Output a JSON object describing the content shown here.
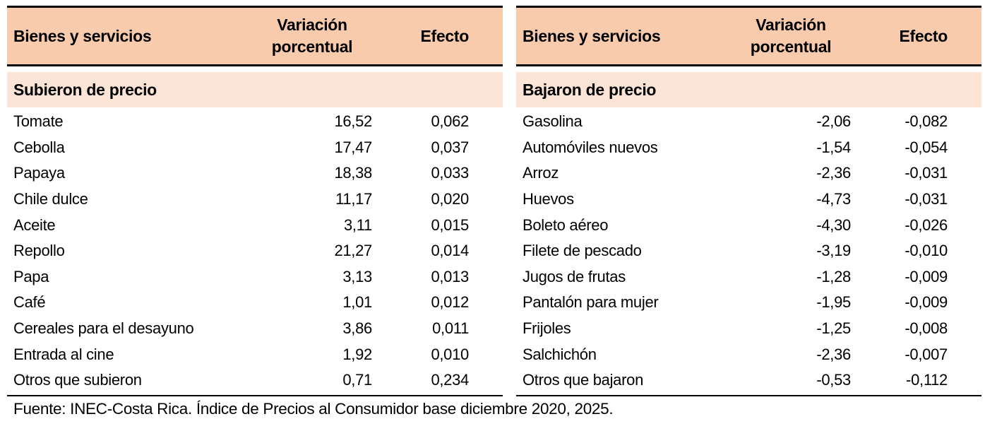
{
  "colors": {
    "header_bg": "#F8CBAD",
    "section_bg": "#FCE4D6",
    "border": "#000000",
    "text": "#000000",
    "background": "#FFFFFF"
  },
  "footer": "Fuente: INEC-Costa Rica. Índice de Precios al Consumidor base diciembre 2020, 2025.",
  "tables": [
    {
      "header": {
        "goods": "Bienes y servicios",
        "variation": "Variación porcentual",
        "effect": "Efecto"
      },
      "section": "Subieron de precio",
      "rows": [
        {
          "name": "Tomate",
          "variation": "16,52",
          "effect": "0,062"
        },
        {
          "name": "Cebolla",
          "variation": "17,47",
          "effect": "0,037"
        },
        {
          "name": "Papaya",
          "variation": "18,38",
          "effect": "0,033"
        },
        {
          "name": "Chile dulce",
          "variation": "11,17",
          "effect": "0,020"
        },
        {
          "name": "Aceite",
          "variation": "3,11",
          "effect": "0,015"
        },
        {
          "name": "Repollo",
          "variation": "21,27",
          "effect": "0,014"
        },
        {
          "name": "Papa",
          "variation": "3,13",
          "effect": "0,013"
        },
        {
          "name": "Café",
          "variation": "1,01",
          "effect": "0,012"
        },
        {
          "name": "Cereales para el desayuno",
          "variation": "3,86",
          "effect": "0,011"
        },
        {
          "name": "Entrada al cine",
          "variation": "1,92",
          "effect": "0,010"
        },
        {
          "name": "Otros que subieron",
          "variation": "0,71",
          "effect": "0,234"
        }
      ]
    },
    {
      "header": {
        "goods": "Bienes y servicios",
        "variation": "Variación porcentual",
        "effect": "Efecto"
      },
      "section": "Bajaron de precio",
      "rows": [
        {
          "name": "Gasolina",
          "variation": "-2,06",
          "effect": "-0,082"
        },
        {
          "name": "Automóviles nuevos",
          "variation": "-1,54",
          "effect": "-0,054"
        },
        {
          "name": "Arroz",
          "variation": "-2,36",
          "effect": "-0,031"
        },
        {
          "name": "Huevos",
          "variation": "-4,73",
          "effect": "-0,031"
        },
        {
          "name": "Boleto aéreo",
          "variation": "-4,30",
          "effect": "-0,026"
        },
        {
          "name": "Filete de pescado",
          "variation": "-3,19",
          "effect": "-0,010"
        },
        {
          "name": "Jugos de frutas",
          "variation": "-1,28",
          "effect": "-0,009"
        },
        {
          "name": "Pantalón para mujer",
          "variation": "-1,95",
          "effect": "-0,009"
        },
        {
          "name": "Frijoles",
          "variation": "-1,25",
          "effect": "-0,008"
        },
        {
          "name": "Salchichón",
          "variation": "-2,36",
          "effect": "-0,007"
        },
        {
          "name": "Otros que bajaron",
          "variation": "-0,53",
          "effect": "-0,112"
        }
      ]
    }
  ],
  "chart_data": [
    {
      "type": "table",
      "title": "Subieron de precio",
      "columns": [
        "Bienes y servicios",
        "Variación porcentual",
        "Efecto"
      ],
      "rows": [
        [
          "Tomate",
          16.52,
          0.062
        ],
        [
          "Cebolla",
          17.47,
          0.037
        ],
        [
          "Papaya",
          18.38,
          0.033
        ],
        [
          "Chile dulce",
          11.17,
          0.02
        ],
        [
          "Aceite",
          3.11,
          0.015
        ],
        [
          "Repollo",
          21.27,
          0.014
        ],
        [
          "Papa",
          3.13,
          0.013
        ],
        [
          "Café",
          1.01,
          0.012
        ],
        [
          "Cereales para el desayuno",
          3.86,
          0.011
        ],
        [
          "Entrada al cine",
          1.92,
          0.01
        ],
        [
          "Otros que subieron",
          0.71,
          0.234
        ]
      ],
      "notes": "Decimal comma formatting; values as shown in source table"
    },
    {
      "type": "table",
      "title": "Bajaron de precio",
      "columns": [
        "Bienes y servicios",
        "Variación porcentual",
        "Efecto"
      ],
      "rows": [
        [
          "Gasolina",
          -2.06,
          -0.082
        ],
        [
          "Automóviles nuevos",
          -1.54,
          -0.054
        ],
        [
          "Arroz",
          -2.36,
          -0.031
        ],
        [
          "Huevos",
          -4.73,
          -0.031
        ],
        [
          "Boleto aéreo",
          -4.3,
          -0.026
        ],
        [
          "Filete de pescado",
          -3.19,
          -0.01
        ],
        [
          "Jugos de frutas",
          -1.28,
          -0.009
        ],
        [
          "Pantalón para mujer",
          -1.95,
          -0.009
        ],
        [
          "Frijoles",
          -1.25,
          -0.008
        ],
        [
          "Salchichón",
          -2.36,
          -0.007
        ],
        [
          "Otros que bajaron",
          -0.53,
          -0.112
        ]
      ],
      "notes": "Decimal comma formatting; values as shown in source table"
    }
  ]
}
